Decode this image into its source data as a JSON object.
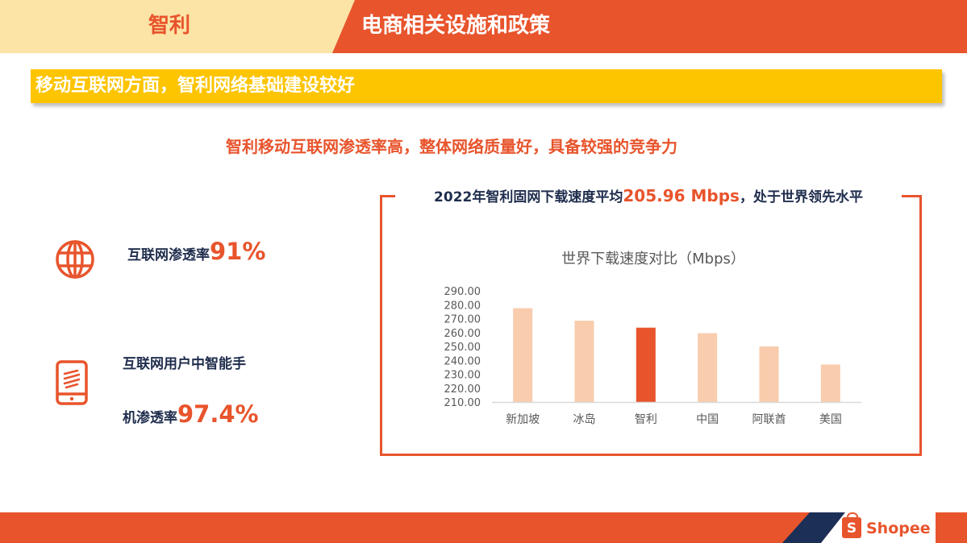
{
  "header": {
    "country": "智利",
    "title": "电商相关设施和政策"
  },
  "banner": "移动互联网方面，智利网络基础建设较好",
  "subtitle": "智利移动互联网渗透率高，整体网络质量好，具备较强的竞争力",
  "stats": {
    "internet": {
      "label": "互联网渗透率",
      "value": "91%",
      "icon": "globe-icon"
    },
    "smartphone": {
      "label_line1": "互联网用户中智能手",
      "label_line2": "机渗透率",
      "value": "97.4%",
      "icon": "smartphone-icon"
    }
  },
  "panel": {
    "title_prefix": "2022年智利固网下载速度平均",
    "title_highlight": "205.96 Mbps",
    "title_suffix": "，处于世界领先水平"
  },
  "chart_data": {
    "type": "bar",
    "title": "世界下载速度对比（Mbps）",
    "categories": [
      "新加坡",
      "冰岛",
      "智利",
      "中国",
      "阿联酋",
      "美国"
    ],
    "values": [
      277.5,
      268.5,
      263.5,
      259.5,
      250,
      237
    ],
    "ylim": [
      210,
      290
    ],
    "yticks": [
      "290.00",
      "280.00",
      "270.00",
      "260.00",
      "250.00",
      "240.00",
      "230.00",
      "220.00",
      "210.00"
    ],
    "highlight_index": 2,
    "colors": {
      "bar": "#f8ccad",
      "highlight": "#e8542c",
      "axis_text": "#595959",
      "axis_line": "#d9d9d9"
    }
  },
  "footer": {
    "brand": "Shopee",
    "brand_icon": "S"
  }
}
